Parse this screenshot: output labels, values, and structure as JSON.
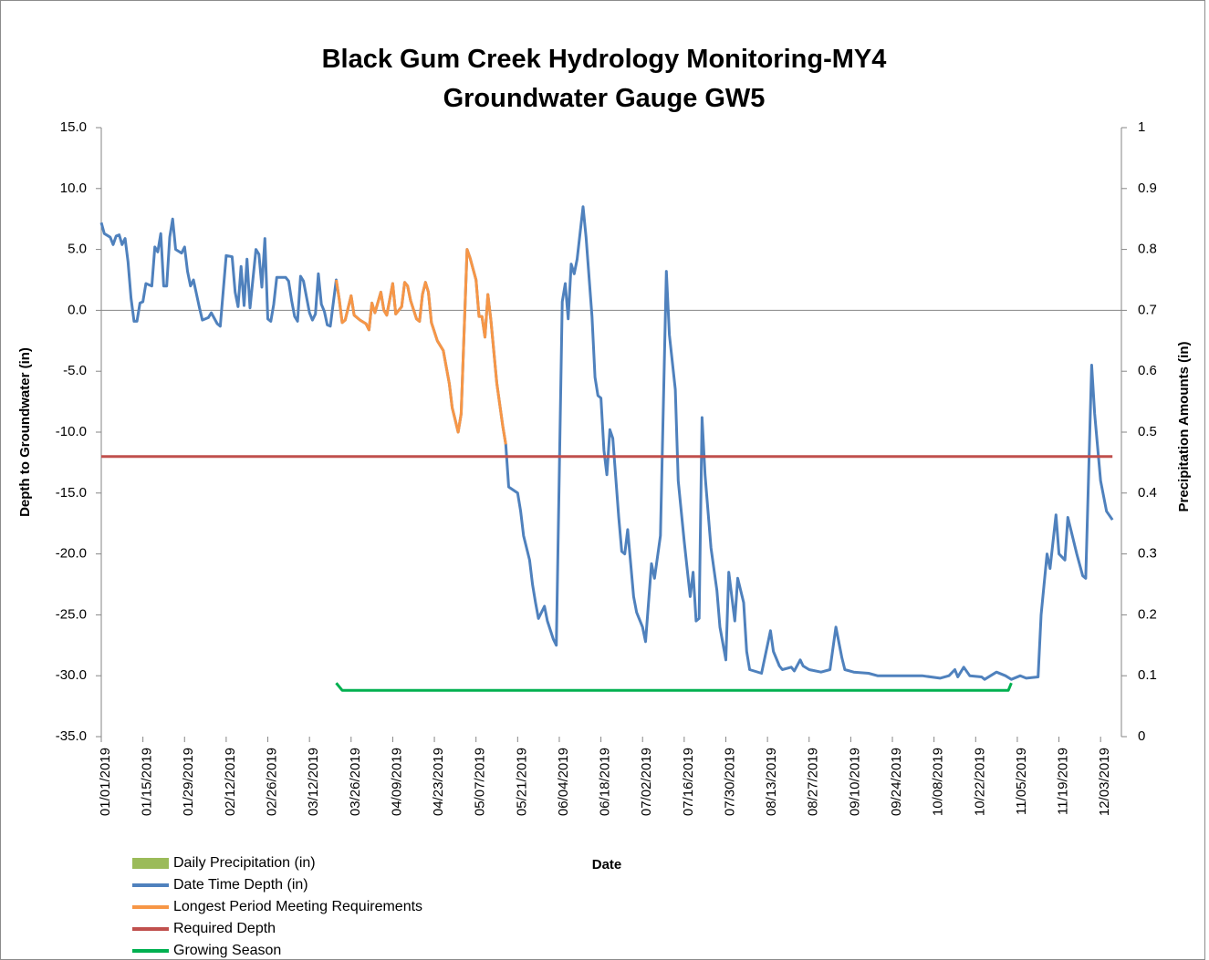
{
  "chart_data": {
    "type": "line",
    "title": [
      "Black Gum Creek Hydrology Monitoring-MY4",
      "Groundwater Gauge GW5"
    ],
    "x_label": "Date",
    "y_label": "Depth to Groundwater (in)",
    "y2_label": "Precipitation Amounts (in)",
    "xlim": [
      "01/01/2019",
      "12/10/2019"
    ],
    "xticks": [
      "01/01/2019",
      "01/15/2019",
      "01/29/2019",
      "02/12/2019",
      "02/26/2019",
      "03/12/2019",
      "03/26/2019",
      "04/09/2019",
      "04/23/2019",
      "05/07/2019",
      "05/21/2019",
      "06/04/2019",
      "06/18/2019",
      "07/02/2019",
      "07/16/2019",
      "07/30/2019",
      "08/13/2019",
      "08/27/2019",
      "09/10/2019",
      "09/24/2019",
      "10/08/2019",
      "10/22/2019",
      "11/05/2019",
      "11/19/2019",
      "12/03/2019"
    ],
    "ylim": [
      -35,
      15
    ],
    "yticks": [
      {
        "value": -35,
        "label": "-35.0"
      },
      {
        "value": -30,
        "label": "-30.0"
      },
      {
        "value": -25,
        "label": "-25.0"
      },
      {
        "value": -20,
        "label": "-20.0"
      },
      {
        "value": -15,
        "label": "-15.0"
      },
      {
        "value": -10,
        "label": "-10.0"
      },
      {
        "value": -5,
        "label": "-5.0"
      },
      {
        "value": 0,
        "label": "0.0"
      },
      {
        "value": 5,
        "label": "5.0"
      },
      {
        "value": 10,
        "label": "10.0"
      },
      {
        "value": 15,
        "label": "15.0"
      }
    ],
    "y2lim": [
      0,
      1
    ],
    "y2ticks": [
      0,
      0.1,
      0.2,
      0.3,
      0.4,
      0.5,
      0.6,
      0.7,
      0.8,
      0.9,
      1
    ],
    "legend": "bottom-left",
    "series": [
      {
        "name": "Daily Precipitation (in)",
        "color": "#9bbb59",
        "axis": "y2",
        "kind": "bar",
        "x": [],
        "values": []
      },
      {
        "name": "Date Time Depth (in)",
        "color": "#4f81bd",
        "x": [
          "01/01/2019",
          "01/02/2019",
          "01/04/2019",
          "01/05/2019",
          "01/06/2019",
          "01/07/2019",
          "01/08/2019",
          "01/09/2019",
          "01/10/2019",
          "01/11/2019",
          "01/12/2019",
          "01/13/2019",
          "01/14/2019",
          "01/15/2019",
          "01/16/2019",
          "01/18/2019",
          "01/19/2019",
          "01/20/2019",
          "01/21/2019",
          "01/22/2019",
          "01/23/2019",
          "01/24/2019",
          "01/25/2019",
          "01/26/2019",
          "01/28/2019",
          "01/29/2019",
          "01/30/2019",
          "01/31/2019",
          "02/01/2019",
          "02/03/2019",
          "02/04/2019",
          "02/06/2019",
          "02/07/2019",
          "02/09/2019",
          "02/10/2019",
          "02/12/2019",
          "02/14/2019",
          "02/15/2019",
          "02/16/2019",
          "02/17/2019",
          "02/18/2019",
          "02/19/2019",
          "02/20/2019",
          "02/22/2019",
          "02/23/2019",
          "02/24/2019",
          "02/25/2019",
          "02/26/2019",
          "02/27/2019",
          "02/28/2019",
          "03/01/2019",
          "03/04/2019",
          "03/05/2019",
          "03/06/2019",
          "03/07/2019",
          "03/08/2019",
          "03/09/2019",
          "03/10/2019",
          "03/12/2019",
          "03/13/2019",
          "03/14/2019",
          "03/15/2019",
          "03/16/2019",
          "03/17/2019",
          "03/18/2019",
          "03/19/2019",
          "03/21/2019",
          "03/22/2019",
          "03/23/2019",
          "03/24/2019",
          "03/26/2019",
          "03/27/2019",
          "03/29/2019",
          "03/31/2019",
          "04/01/2019",
          "04/02/2019",
          "04/03/2019",
          "04/05/2019",
          "04/06/2019",
          "04/07/2019",
          "04/09/2019",
          "04/10/2019",
          "04/12/2019",
          "04/13/2019",
          "04/14/2019",
          "04/15/2019",
          "04/17/2019",
          "04/18/2019",
          "04/19/2019",
          "04/20/2019",
          "04/21/2019",
          "04/22/2019",
          "04/24/2019",
          "04/26/2019",
          "04/28/2019",
          "04/29/2019",
          "04/30/2019",
          "05/01/2019",
          "05/02/2019",
          "05/04/2019",
          "05/05/2019",
          "05/07/2019",
          "05/08/2019",
          "05/09/2019",
          "05/10/2019",
          "05/11/2019",
          "05/12/2019",
          "05/14/2019",
          "05/16/2019",
          "05/17/2019",
          "05/18/2019",
          "05/21/2019",
          "05/22/2019",
          "05/23/2019",
          "05/25/2019",
          "05/26/2019",
          "05/27/2019",
          "05/28/2019",
          "05/30/2019",
          "05/31/2019",
          "06/02/2019",
          "06/03/2019",
          "06/05/2019",
          "06/06/2019",
          "06/07/2019",
          "06/08/2019",
          "06/09/2019",
          "06/10/2019",
          "06/12/2019",
          "06/13/2019",
          "06/15/2019",
          "06/16/2019",
          "06/17/2019",
          "06/18/2019",
          "06/19/2019",
          "06/20/2019",
          "06/21/2019",
          "06/22/2019",
          "06/24/2019",
          "06/25/2019",
          "06/26/2019",
          "06/27/2019",
          "06/29/2019",
          "06/30/2019",
          "07/02/2019",
          "07/03/2019",
          "07/05/2019",
          "07/06/2019",
          "07/08/2019",
          "07/10/2019",
          "07/11/2019",
          "07/13/2019",
          "07/14/2019",
          "07/16/2019",
          "07/18/2019",
          "07/19/2019",
          "07/20/2019",
          "07/21/2019",
          "07/22/2019",
          "07/23/2019",
          "07/25/2019",
          "07/27/2019",
          "07/28/2019",
          "07/30/2019",
          "07/31/2019",
          "08/02/2019",
          "08/03/2019",
          "08/05/2019",
          "08/06/2019",
          "08/07/2019",
          "08/11/2019",
          "08/14/2019",
          "08/15/2019",
          "08/17/2019",
          "08/18/2019",
          "08/21/2019",
          "08/22/2019",
          "08/24/2019",
          "08/25/2019",
          "08/27/2019",
          "08/31/2019",
          "09/03/2019",
          "09/05/2019",
          "09/07/2019",
          "09/08/2019",
          "09/11/2019",
          "09/16/2019",
          "09/19/2019",
          "09/26/2019",
          "10/04/2019",
          "10/10/2019",
          "10/13/2019",
          "10/15/2019",
          "10/16/2019",
          "10/18/2019",
          "10/20/2019",
          "10/24/2019",
          "10/25/2019",
          "10/29/2019",
          "11/01/2019",
          "11/03/2019",
          "11/06/2019",
          "11/08/2019",
          "11/12/2019",
          "11/13/2019",
          "11/15/2019",
          "11/16/2019",
          "11/18/2019",
          "11/19/2019",
          "11/21/2019",
          "11/22/2019",
          "11/25/2019",
          "11/27/2019",
          "11/28/2019",
          "11/30/2019",
          "12/01/2019",
          "12/03/2019",
          "12/05/2019",
          "12/07/2019"
        ],
        "values": [
          7.2,
          6.3,
          6.0,
          5.4,
          6.1,
          6.2,
          5.4,
          5.9,
          4.0,
          1.0,
          -0.9,
          -0.9,
          0.6,
          0.7,
          2.2,
          2.0,
          5.2,
          4.8,
          6.3,
          2.0,
          2.0,
          6.0,
          7.5,
          5.0,
          4.7,
          5.2,
          3.2,
          2.0,
          2.5,
          0.2,
          -0.8,
          -0.6,
          -0.2,
          -1.1,
          -1.3,
          4.5,
          4.4,
          1.5,
          0.3,
          3.6,
          0.4,
          4.2,
          0.2,
          5.0,
          4.6,
          1.9,
          5.9,
          -0.7,
          -0.9,
          0.5,
          2.7,
          2.7,
          2.4,
          0.8,
          -0.5,
          -0.9,
          2.8,
          2.4,
          -0.2,
          -0.8,
          -0.3,
          3.0,
          0.5,
          -0.1,
          -1.2,
          -1.3,
          2.5,
          0.9,
          -1.0,
          -0.8,
          1.2,
          -0.4,
          -0.8,
          -1.1,
          -1.6,
          0.6,
          -0.2,
          1.5,
          0.0,
          -0.4,
          2.2,
          -0.3,
          0.3,
          2.3,
          2.0,
          0.8,
          -0.7,
          -0.9,
          1.3,
          2.3,
          1.5,
          -1.0,
          -2.5,
          -3.3,
          -6.0,
          -8.0,
          -9.0,
          -10.0,
          -8.5,
          5.0,
          4.3,
          2.5,
          -0.5,
          -0.5,
          -2.2,
          1.3,
          -0.8,
          -6.0,
          -9.5,
          -11.0,
          -14.5,
          -15.0,
          -16.5,
          -18.5,
          -20.5,
          -22.5,
          -24.0,
          -25.3,
          -24.3,
          -25.5,
          -27.0,
          -27.5,
          0.7,
          2.2,
          -0.7,
          3.8,
          3.0,
          4.2,
          8.5,
          6.0,
          -0.5,
          -5.5,
          -7.0,
          -7.2,
          -11.5,
          -13.5,
          -9.8,
          -10.5,
          -17.0,
          -19.8,
          -20.0,
          -18.0,
          -23.5,
          -24.8,
          -26.0,
          -27.2,
          -20.8,
          -22.0,
          -18.5,
          3.2,
          -2.0,
          -6.5,
          -14.0,
          -19.0,
          -23.5,
          -21.5,
          -25.5,
          -25.3,
          -8.8,
          -13.5,
          -19.5,
          -23.0,
          -26.0,
          -28.7,
          -21.5,
          -25.5,
          -22.0,
          -24.0,
          -28.0,
          -29.5,
          -29.8,
          -26.3,
          -28.0,
          -29.2,
          -29.5,
          -29.3,
          -29.6,
          -28.7,
          -29.2,
          -29.5,
          -29.7,
          -29.5,
          -26.0,
          -28.5,
          -29.5,
          -29.7,
          -29.8,
          -30.0,
          -30.0,
          -30.0,
          -30.2,
          -30.0,
          -29.5,
          -30.1,
          -29.3,
          -30.0,
          -30.1,
          -30.3,
          -29.7,
          -30.0,
          -30.3,
          -30.0,
          -30.2,
          -30.1,
          -25.0,
          -20.0,
          -21.2,
          -16.8,
          -20.0,
          -20.5,
          -17.0,
          -20.0,
          -21.8,
          -22.0,
          -4.5,
          -8.5,
          -14.0,
          -16.5,
          -17.2
        ]
      },
      {
        "name": "Longest Period Meeting Requirements",
        "color": "#f79646",
        "x": [
          "03/21/2019",
          "03/22/2019",
          "03/23/2019",
          "03/24/2019",
          "03/26/2019",
          "03/27/2019",
          "03/29/2019",
          "03/31/2019",
          "04/01/2019",
          "04/02/2019",
          "04/03/2019",
          "04/05/2019",
          "04/06/2019",
          "04/07/2019",
          "04/09/2019",
          "04/10/2019",
          "04/12/2019",
          "04/13/2019",
          "04/14/2019",
          "04/15/2019",
          "04/17/2019",
          "04/18/2019",
          "04/19/2019",
          "04/20/2019",
          "04/21/2019",
          "04/22/2019",
          "04/24/2019",
          "04/26/2019",
          "04/28/2019",
          "04/29/2019",
          "04/30/2019",
          "05/01/2019",
          "05/02/2019",
          "05/04/2019",
          "05/05/2019",
          "05/07/2019",
          "05/08/2019",
          "05/09/2019",
          "05/10/2019",
          "05/11/2019",
          "05/12/2019",
          "05/14/2019",
          "05/16/2019",
          "05/17/2019"
        ],
        "values": [
          2.5,
          0.9,
          -1.0,
          -0.8,
          1.2,
          -0.4,
          -0.8,
          -1.1,
          -1.6,
          0.6,
          -0.2,
          1.5,
          0.0,
          -0.4,
          2.2,
          -0.3,
          0.3,
          2.3,
          2.0,
          0.8,
          -0.7,
          -0.9,
          1.3,
          2.3,
          1.5,
          -1.0,
          -2.5,
          -3.3,
          -6.0,
          -8.0,
          -9.0,
          -10.0,
          -8.5,
          5.0,
          4.3,
          2.5,
          -0.5,
          -0.5,
          -2.2,
          1.3,
          -0.8,
          -6.0,
          -9.5,
          -11.0
        ]
      },
      {
        "name": "Required Depth",
        "color": "#c0504d",
        "x": [
          "01/01/2019",
          "12/07/2019"
        ],
        "values": [
          -12,
          -12
        ]
      },
      {
        "name": "Growing Season",
        "color": "#00b050",
        "x": [
          "03/21/2019",
          "03/23/2019",
          "11/02/2019",
          "11/03/2019"
        ],
        "values": [
          -30.6,
          -31.2,
          -31.2,
          -30.6
        ]
      }
    ]
  }
}
